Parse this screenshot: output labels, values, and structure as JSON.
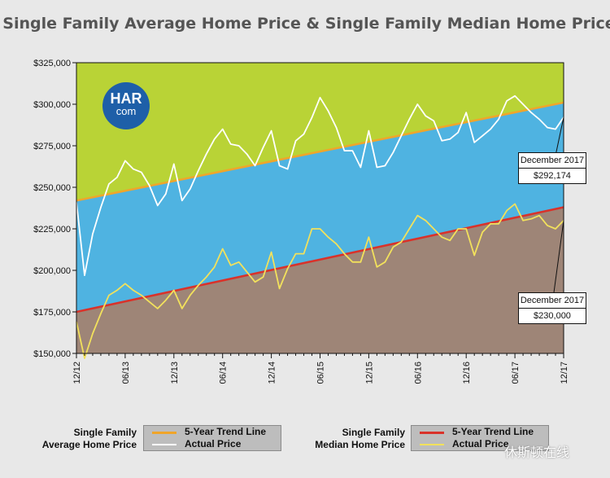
{
  "title": "Single Family Average Home Price & Single Family Median Home Price",
  "logo": {
    "line1": "HAR",
    "line2": "com"
  },
  "chart_data": {
    "type": "line",
    "title": "Single Family Average Home Price & Single Family Median Home Price",
    "ylim": [
      150000,
      325000
    ],
    "yticks": [
      150000,
      175000,
      200000,
      225000,
      250000,
      275000,
      300000,
      325000
    ],
    "ytick_labels": [
      "$150,000",
      "$175,000",
      "$200,000",
      "$225,000",
      "$250,000",
      "$275,000",
      "$300,000",
      "$325,000"
    ],
    "x_tick_labels": [
      "12/12",
      "06/13",
      "12/13",
      "06/14",
      "12/14",
      "06/15",
      "12/15",
      "06/16",
      "12/16",
      "06/17",
      "12/17"
    ],
    "x_tick_positions": [
      0,
      6,
      12,
      18,
      24,
      30,
      36,
      42,
      48,
      54,
      60
    ],
    "x_range": [
      0,
      60
    ],
    "grid": false,
    "colors": {
      "top_fill": "#b9d336",
      "middle_fill": "#4fb3e1",
      "bottom_fill": "#9e8577",
      "average_trend": "#f0a52a",
      "median_trend": "#d9322a",
      "average_actual": "#ffffff",
      "median_actual": "#f2e15c"
    },
    "series": [
      {
        "name": "Single Family Average Home Price",
        "kind": "actual",
        "values": [
          241000,
          197000,
          222000,
          238000,
          252000,
          256000,
          266000,
          261000,
          259000,
          251000,
          239000,
          246000,
          264000,
          242000,
          249000,
          260000,
          270000,
          279000,
          285000,
          276000,
          275000,
          270000,
          263000,
          274000,
          284000,
          263000,
          261000,
          278000,
          282000,
          292000,
          304000,
          296000,
          286000,
          272000,
          272000,
          262000,
          284000,
          262000,
          263000,
          271000,
          281000,
          291000,
          300000,
          293000,
          290000,
          278000,
          279000,
          283000,
          295000,
          277000,
          281000,
          285000,
          291000,
          302000,
          305000,
          300000,
          295000,
          291000,
          286000,
          285000,
          292174
        ]
      },
      {
        "name": "Single Family Average Home Price",
        "kind": "trend",
        "values": [
          242000,
          301000
        ]
      },
      {
        "name": "Single Family Median Home Price",
        "kind": "actual",
        "values": [
          169000,
          147000,
          162000,
          174000,
          185000,
          188000,
          192000,
          188000,
          185000,
          181000,
          177000,
          182000,
          188000,
          177000,
          185000,
          191000,
          196000,
          202000,
          213000,
          203000,
          205000,
          199000,
          193000,
          196000,
          211000,
          189000,
          201000,
          210000,
          210000,
          225000,
          225000,
          220000,
          216000,
          210000,
          205000,
          205000,
          220000,
          202000,
          205000,
          214000,
          217000,
          225000,
          233000,
          230000,
          225000,
          220000,
          218000,
          225000,
          225000,
          209000,
          223000,
          228000,
          228000,
          236000,
          240000,
          230000,
          231000,
          233000,
          227000,
          225000,
          230000
        ]
      },
      {
        "name": "Single Family Median Home Price",
        "kind": "trend",
        "values": [
          175000,
          238000
        ]
      }
    ],
    "annotations": [
      {
        "label": "December 2017",
        "value": "$292,174"
      },
      {
        "label": "December 2017",
        "value": "$230,000"
      }
    ]
  },
  "legend": {
    "average": {
      "name_line1": "Single Family",
      "name_line2": "Average Home Price",
      "trend_label": "5-Year Trend Line",
      "actual_label": "Actual Price"
    },
    "median": {
      "name_line1": "Single Family",
      "name_line2": "Median Home Price",
      "trend_label": "5-Year Trend Line",
      "actual_label": "Actual Price"
    }
  },
  "watermark": "休斯顿在线"
}
